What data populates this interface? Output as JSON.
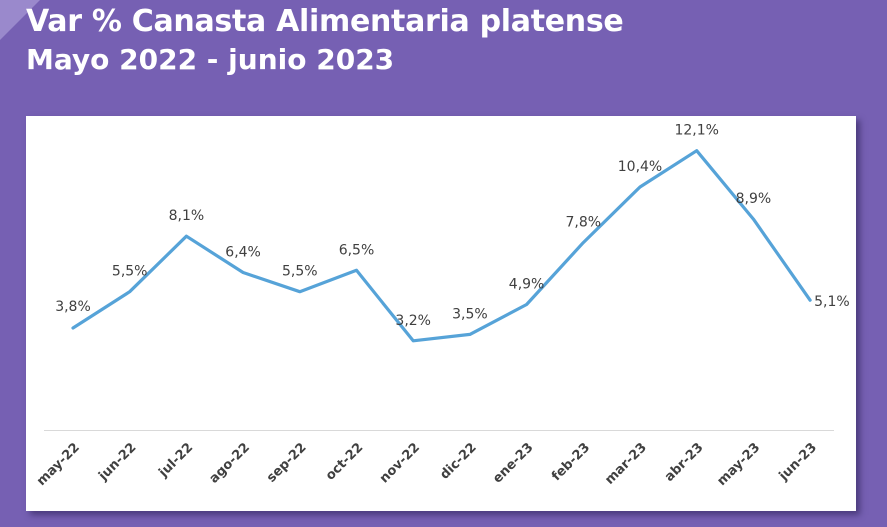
{
  "header": {
    "title": "Var % Canasta Alimentaria platense",
    "subtitle": "Mayo 2022 - junio 2023"
  },
  "colors": {
    "background": "#7660b3",
    "line": "#56a3d8",
    "panel": "#ffffff",
    "label": "#404040"
  },
  "chart_data": {
    "type": "line",
    "title": "Var % Canasta Alimentaria platense",
    "subtitle": "Mayo 2022 - junio 2023",
    "categories": [
      "may-22",
      "jun-22",
      "jul-22",
      "ago-22",
      "sep-22",
      "oct-22",
      "nov-22",
      "dic-22",
      "ene-23",
      "feb-23",
      "mar-23",
      "abr-23",
      "may-23",
      "jun-23"
    ],
    "values": [
      3.8,
      5.5,
      8.1,
      6.4,
      5.5,
      6.5,
      3.2,
      3.5,
      4.9,
      7.8,
      10.4,
      12.1,
      8.9,
      5.1
    ],
    "data_labels": [
      "3,8%",
      "5,5%",
      "8,1%",
      "6,4%",
      "5,5%",
      "6,5%",
      "3,2%",
      "3,5%",
      "4,9%",
      "7,8%",
      "10,4%",
      "12,1%",
      "8,9%",
      "5,1%"
    ],
    "ylim": [
      -1,
      13
    ],
    "grid": false,
    "legend": "none",
    "xlabel": "",
    "ylabel": ""
  }
}
